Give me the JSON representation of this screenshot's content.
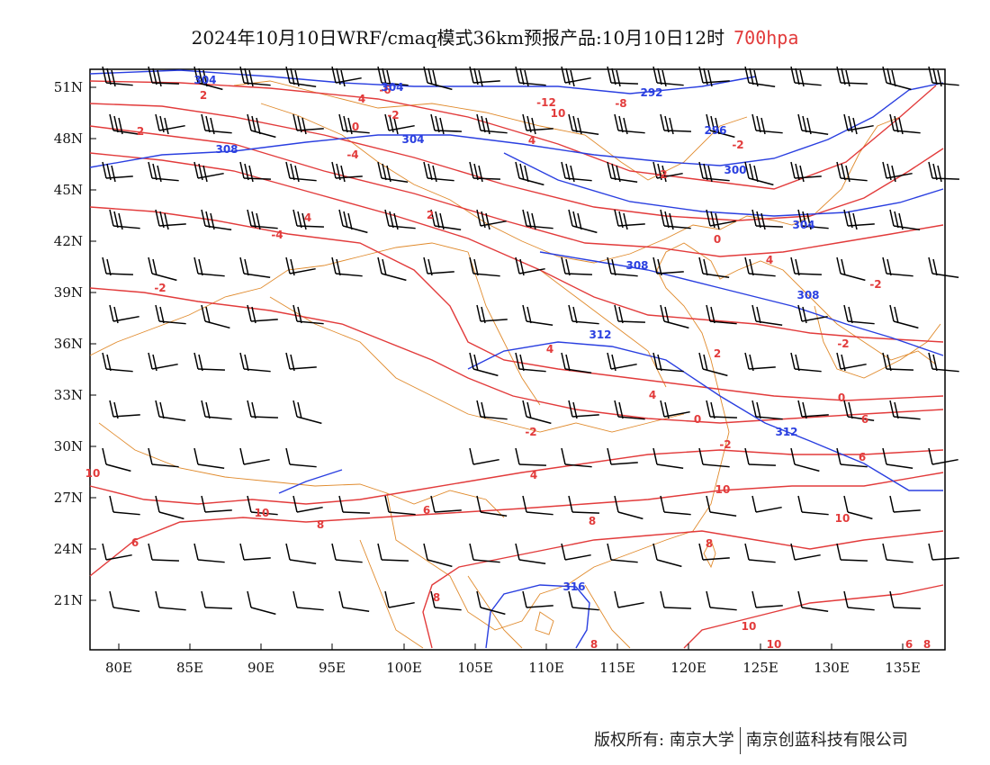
{
  "title": {
    "main": "2024年10月10日WRF/cmaq模式36km预报产品:10月10日12时",
    "level": "700hpa"
  },
  "axes": {
    "lat_labels": [
      "51N",
      "48N",
      "45N",
      "42N",
      "39N",
      "36N",
      "33N",
      "30N",
      "27N",
      "24N",
      "21N"
    ],
    "lon_labels": [
      "80E",
      "85E",
      "90E",
      "95E",
      "100E",
      "105E",
      "110E",
      "115E",
      "120E",
      "125E",
      "130E",
      "135E"
    ]
  },
  "contours": {
    "temperature_labels": [
      "2",
      "-6",
      "4",
      "-12",
      "10",
      "-8",
      "-2",
      "0",
      "2",
      "-4",
      "-2",
      "-2",
      "4",
      "2",
      "4",
      "-4",
      "-2",
      "4",
      "0",
      "-2",
      "4",
      "2",
      "-2",
      "4",
      "0",
      "0",
      "-2",
      "-2",
      "4",
      "6",
      "6",
      "6",
      "8",
      "8",
      "8",
      "6",
      "8",
      "10",
      "10",
      "10",
      "10",
      "10",
      "8",
      "10",
      "6",
      "8"
    ],
    "height_labels": [
      "304",
      "304",
      "292",
      "304",
      "296",
      "308",
      "300",
      "304",
      "308",
      "308",
      "312",
      "312",
      "316"
    ],
    "colors": {
      "temperature": "#e23b3b",
      "height": "#2a3fe0",
      "border": "#e08a2c",
      "wind": "#000000"
    }
  },
  "footer": {
    "copyright": "版权所有: 南京大学",
    "company": "南京创蓝科技有限公司"
  }
}
